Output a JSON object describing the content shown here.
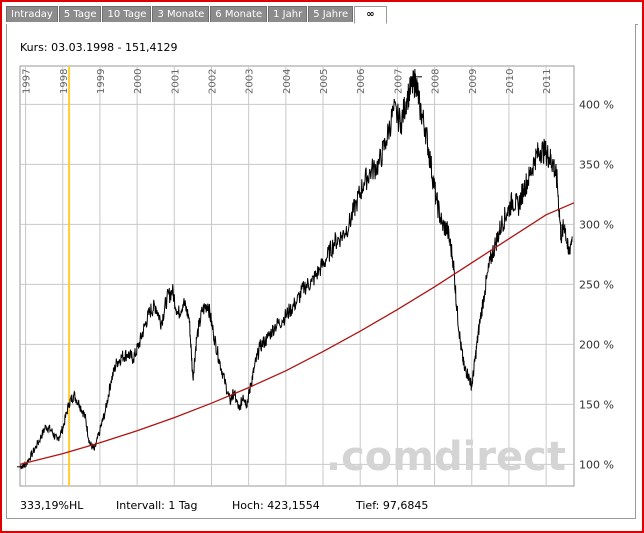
{
  "tabs": [
    {
      "label": "Intraday",
      "active": false
    },
    {
      "label": "5 Tage",
      "active": false
    },
    {
      "label": "10 Tage",
      "active": false
    },
    {
      "label": "3 Monate",
      "active": false
    },
    {
      "label": "6 Monate",
      "active": false
    },
    {
      "label": "1 Jahr",
      "active": false
    },
    {
      "label": "5 Jahre",
      "active": false
    },
    {
      "label": "∞",
      "active": true
    }
  ],
  "kurs": "Kurs: 03.03.1998 - 151,4129",
  "footer": {
    "change": "333,19%HL",
    "interval": "Intervall: 1 Tag",
    "high": "Hoch: 423,1554",
    "low": "Tief: 97,6845"
  },
  "watermark": ".comdirect",
  "colors": {
    "frame": "#e00000",
    "tab_bg": "#8c8c8c",
    "price_line": "#000000",
    "trend_line": "#b01414",
    "cursor_line": "#ffcc33",
    "grid": "#c8c8c8",
    "watermark": "#d4d4d4"
  },
  "chart_data": {
    "type": "line",
    "title": "",
    "xlabel": "",
    "ylabel": "",
    "x_ticks": [
      "1997",
      "1998",
      "1999",
      "2000",
      "2001",
      "2002",
      "2003",
      "2004",
      "2005",
      "2006",
      "2007",
      "2008",
      "2009",
      "2010",
      "2011"
    ],
    "y_ticks": [
      "100 %",
      "150 %",
      "200 %",
      "250 %",
      "300 %",
      "350 %",
      "400 %"
    ],
    "xlim": [
      1996.85,
      2011.75
    ],
    "ylim": [
      82,
      432
    ],
    "grid": true,
    "cursor_x": 1998.17,
    "series": [
      {
        "kind": "price",
        "x": [
          1996.85,
          1997.0,
          1997.2,
          1997.4,
          1997.55,
          1997.7,
          1997.85,
          1998.0,
          1998.17,
          1998.3,
          1998.45,
          1998.6,
          1998.72,
          1998.85,
          1999.0,
          1999.15,
          1999.3,
          1999.45,
          1999.6,
          1999.75,
          1999.9,
          2000.05,
          2000.2,
          2000.35,
          2000.5,
          2000.65,
          2000.8,
          2000.95,
          2001.1,
          2001.25,
          2001.4,
          2001.5,
          2001.6,
          2001.75,
          2001.9,
          2002.05,
          2002.2,
          2002.35,
          2002.5,
          2002.6,
          2002.75,
          2002.85,
          2002.95,
          2003.05,
          2003.15,
          2003.3,
          2003.5,
          2003.7,
          2003.9,
          2004.1,
          2004.3,
          2004.5,
          2004.7,
          2004.9,
          2005.1,
          2005.3,
          2005.5,
          2005.7,
          2005.9,
          2006.1,
          2006.3,
          2006.5,
          2006.7,
          2006.9,
          2007.1,
          2007.25,
          2007.4,
          2007.5,
          2007.6,
          2007.75,
          2007.9,
          2008.05,
          2008.2,
          2008.35,
          2008.5,
          2008.6,
          2008.7,
          2008.8,
          2008.9,
          2009.0,
          2009.1,
          2009.2,
          2009.35,
          2009.5,
          2009.65,
          2009.8,
          2009.95,
          2010.1,
          2010.25,
          2010.4,
          2010.55,
          2010.7,
          2010.85,
          2011.0,
          2011.1,
          2011.2,
          2011.3,
          2011.4,
          2011.5,
          2011.6,
          2011.7
        ],
        "values": [
          98,
          100,
          110,
          122,
          132,
          128,
          120,
          130,
          151,
          158,
          150,
          140,
          118,
          112,
          128,
          145,
          170,
          185,
          190,
          192,
          188,
          200,
          215,
          228,
          232,
          218,
          238,
          245,
          225,
          235,
          222,
          172,
          205,
          228,
          234,
          210,
          188,
          170,
          152,
          160,
          145,
          158,
          150,
          165,
          180,
          198,
          205,
          215,
          220,
          228,
          236,
          248,
          252,
          262,
          272,
          285,
          290,
          300,
          318,
          335,
          345,
          350,
          370,
          395,
          385,
          405,
          415,
          420,
          398,
          380,
          350,
          320,
          300,
          295,
          270,
          230,
          200,
          180,
          175,
          165,
          190,
          215,
          245,
          270,
          285,
          300,
          310,
          320,
          315,
          330,
          340,
          355,
          362,
          360,
          355,
          350,
          335,
          290,
          300,
          275,
          290
        ]
      },
      {
        "kind": "trend",
        "x": [
          1996.85,
          1998.0,
          1999.0,
          2000.0,
          2001.0,
          2002.0,
          2003.0,
          2004.0,
          2005.0,
          2006.0,
          2007.0,
          2008.0,
          2009.0,
          2010.0,
          2011.0,
          2011.75
        ],
        "values": [
          100,
          109,
          118,
          128,
          139,
          151,
          164,
          178,
          194,
          211,
          229,
          248,
          268,
          288,
          308,
          318
        ]
      }
    ]
  }
}
